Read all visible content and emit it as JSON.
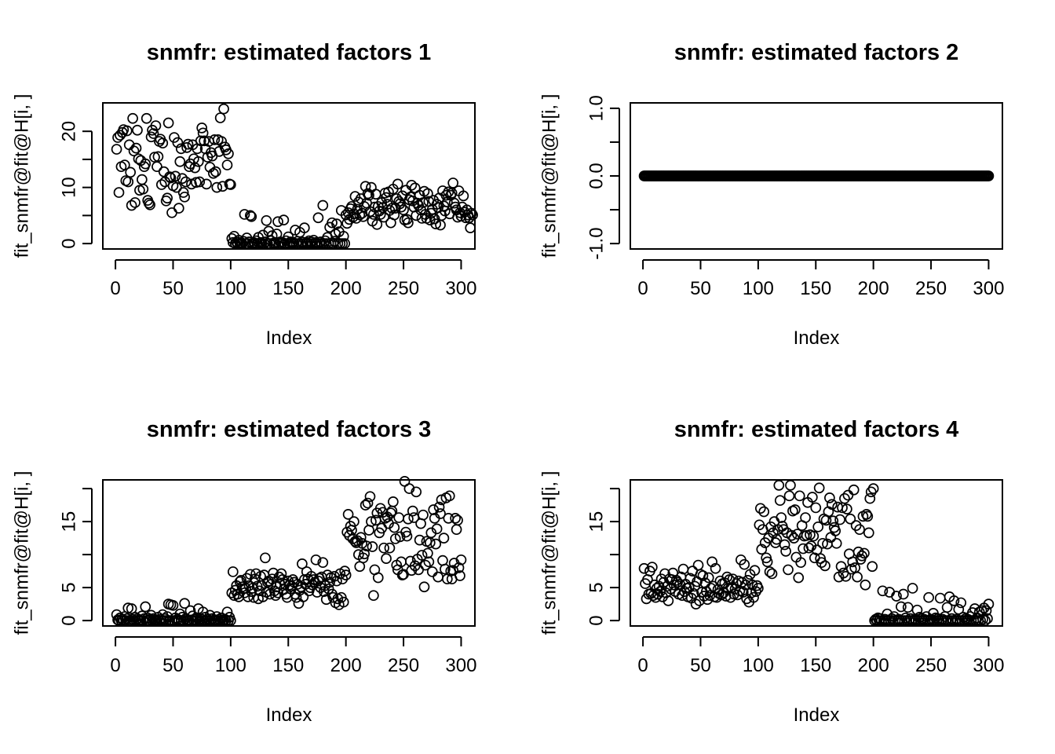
{
  "figure": {
    "panels": [
      {
        "title": "snmfr: estimated factors 1",
        "xlabel": "Index",
        "ylabel": "fit_snmfr@fit@H[i, ]",
        "xticks": [
          "0",
          "50",
          "100",
          "150",
          "200",
          "250",
          "300"
        ],
        "yticks": [
          "0",
          "10",
          "20"
        ]
      },
      {
        "title": "snmfr: estimated factors 2",
        "xlabel": "Index",
        "ylabel": "fit_snmfr@fit@H[i, ]",
        "xticks": [
          "0",
          "50",
          "100",
          "150",
          "200",
          "250",
          "300"
        ],
        "yticks": [
          "-1.0",
          "0.0",
          "1.0"
        ]
      },
      {
        "title": "snmfr: estimated factors 3",
        "xlabel": "Index",
        "ylabel": "fit_snmfr@fit@H[i, ]",
        "xticks": [
          "0",
          "50",
          "100",
          "150",
          "200",
          "250",
          "300"
        ],
        "yticks": [
          "0",
          "5",
          "15"
        ]
      },
      {
        "title": "snmfr: estimated factors 4",
        "xlabel": "Index",
        "ylabel": "fit_snmfr@fit@H[i, ]",
        "xticks": [
          "0",
          "50",
          "100",
          "150",
          "200",
          "250",
          "300"
        ],
        "yticks": [
          "0",
          "5",
          "15"
        ]
      }
    ]
  },
  "chart_data": [
    {
      "type": "scatter",
      "title": "snmfr: estimated factors 1",
      "xlabel": "Index",
      "ylabel": "fit_snmfr@fit@H[i, ]",
      "xlim": [
        1,
        300
      ],
      "ylim": [
        0,
        24.1
      ],
      "x_ticks": [
        0,
        50,
        100,
        150,
        200,
        250,
        300
      ],
      "y_ticks": [
        0,
        5,
        10,
        15,
        20
      ],
      "y_tick_labels": [
        "0",
        "",
        "10",
        "",
        "20"
      ],
      "grid": false,
      "marker": "open-circle",
      "y": [
        16.8,
        18.9,
        9.1,
        19.3,
        13.7,
        19.8,
        20.3,
        14.0,
        11.2,
        20.1,
        11.0,
        17.6,
        12.7,
        6.8,
        22.3,
        16.5,
        7.3,
        17.0,
        20.2,
        15.1,
        9.5,
        14.8,
        11.4,
        9.7,
        13.7,
        14.2,
        22.3,
        7.7,
        7.2,
        6.9,
        19.0,
        20.2,
        19.6,
        15.4,
        21.0,
        13.7,
        15.5,
        18.2,
        18.6,
        10.5,
        17.9,
        12.8,
        11.0,
        7.6,
        8.1,
        21.5,
        11.9,
        11.7,
        5.5,
        10.3,
        18.9,
        12.0,
        10.0,
        18.0,
        6.3,
        14.6,
        16.9,
        11.6,
        9.1,
        8.3,
        11.0,
        17.1,
        17.7,
        13.7,
        14.2,
        10.6,
        17.6,
        15.1,
        13.5,
        10.9,
        16.9,
        14.6,
        11.0,
        18.3,
        20.6,
        19.7,
        18.3,
        16.9,
        10.6,
        15.4,
        18.2,
        13.6,
        16.2,
        15.6,
        12.5,
        18.5,
        12.8,
        10.0,
        18.5,
        16.4,
        22.4,
        18.2,
        10.2,
        24.0,
        17.2,
        16.7,
        14.0,
        16.0,
        10.6,
        10.5,
        0.9,
        0.2,
        1.3,
        0.0,
        0.3,
        0.0,
        0.6,
        0.0,
        0.2,
        0.0,
        0.4,
        5.2,
        0.0,
        1.0,
        0.0,
        0.3,
        5.0,
        4.8,
        0.0,
        0.2,
        0.0,
        0.5,
        0.0,
        1.1,
        0.0,
        0.2,
        0.0,
        1.5,
        0.0,
        0.3,
        4.1,
        0.0,
        2.2,
        0.0,
        0.5,
        1.4,
        0.0,
        0.2,
        0.0,
        1.7,
        3.9,
        0.0,
        0.3,
        0.0,
        0.2,
        4.2,
        0.0,
        0.5,
        0.0,
        1.2,
        0.0,
        0.3,
        0.0,
        0.2,
        0.0,
        2.4,
        0.0,
        0.4,
        0.0,
        2.0,
        0.0,
        0.3,
        0.0,
        2.8,
        0.0,
        0.2,
        0.0,
        0.5,
        0.0,
        0.3,
        0.0,
        0.6,
        0.0,
        0.2,
        0.0,
        4.6,
        0.0,
        0.3,
        0.0,
        6.8,
        0.0,
        0.5,
        0.0,
        1.1,
        0.0,
        2.9,
        0.0,
        3.7,
        0.0,
        0.4,
        1.7,
        3.5,
        0.0,
        2.1,
        0.0,
        5.9,
        0.0,
        1.3,
        0.0,
        5.1,
        3.6,
        5.5,
        4.3,
        6.2,
        6.6,
        4.7,
        5.3,
        8.4,
        4.5,
        6.1,
        7.4,
        5.1,
        8.0,
        5.4,
        4.8,
        6.6,
        10.2,
        7.2,
        8.9,
        8.6,
        5.7,
        10.0,
        4.0,
        5.2,
        6.5,
        8.8,
        3.4,
        6.6,
        5.8,
        5.2,
        7.3,
        6.4,
        4.7,
        9.0,
        8.2,
        7.0,
        9.2,
        5.9,
        3.7,
        6.3,
        9.7,
        5.1,
        6.3,
        8.0,
        10.6,
        7.5,
        7.1,
        6.5,
        8.5,
        6.0,
        4.2,
        9.5,
        4.3,
        3.7,
        7.8,
        8.3,
        10.4,
        7.6,
        6.5,
        9.9,
        5.0,
        7.2,
        6.8,
        8.6,
        6.0,
        4.5,
        7.3,
        9.3,
        5.2,
        4.5,
        8.9,
        7.5,
        4.2,
        5.4,
        6.1,
        7.7,
        4.4,
        3.5,
        7.0,
        6.4,
        8.1,
        3.3,
        5.0,
        9.4,
        6.7,
        5.8,
        8.6,
        7.4,
        9.2,
        5.3,
        8.6,
        9.0,
        10.8,
        7.2,
        6.5,
        6.0,
        4.7,
        9.4,
        5.5,
        4.9,
        6.5,
        8.5,
        5.6,
        4.6,
        6.0,
        5.1,
        4.6,
        2.8,
        5.4,
        5.1
      ]
    },
    {
      "type": "scatter",
      "title": "snmfr: estimated factors 2",
      "xlabel": "Index",
      "ylabel": "fit_snmfr@fit@H[i, ]",
      "xlim": [
        1,
        300
      ],
      "ylim": [
        -1.0,
        1.0
      ],
      "x_ticks": [
        0,
        50,
        100,
        150,
        200,
        250,
        300
      ],
      "y_ticks": [
        -1.0,
        -0.5,
        0.0,
        0.5,
        1.0
      ],
      "y_tick_labels": [
        "-1.0",
        "",
        "0.0",
        "",
        "1.0"
      ],
      "grid": false,
      "marker": "open-circle",
      "constant_value": 0,
      "n_points": 300
    },
    {
      "type": "scatter",
      "title": "snmfr: estimated factors 3",
      "xlabel": "Index",
      "ylabel": "fit_snmfr@fit@H[i, ]",
      "xlim": [
        1,
        300
      ],
      "ylim": [
        0,
        20.5
      ],
      "x_ticks": [
        0,
        50,
        100,
        150,
        200,
        250,
        300
      ],
      "y_ticks": [
        0,
        5,
        10,
        15,
        20
      ],
      "y_tick_labels": [
        "0",
        "5",
        "",
        "15",
        ""
      ],
      "grid": false,
      "marker": "open-circle",
      "y": [
        0.9,
        0.1,
        0.0,
        0.4,
        0.0,
        0.2,
        0.0,
        0.6,
        0.0,
        0.3,
        1.9,
        0.0,
        0.0,
        1.8,
        0.2,
        0.0,
        0.5,
        0.0,
        0.3,
        0.0,
        0.1,
        0.0,
        0.7,
        0.0,
        0.3,
        2.1,
        0.0,
        0.4,
        0.0,
        0.2,
        0.8,
        0.0,
        0.3,
        0.0,
        0.1,
        0.0,
        0.5,
        0.0,
        0.2,
        0.0,
        0.9,
        0.0,
        0.3,
        0.0,
        0.6,
        2.5,
        0.0,
        2.4,
        0.0,
        2.3,
        0.0,
        0.4,
        0.0,
        0.2,
        0.0,
        1.0,
        0.0,
        0.5,
        0.0,
        2.6,
        0.3,
        0.0,
        0.1,
        0.0,
        1.5,
        0.0,
        0.7,
        0.0,
        0.2,
        0.0,
        0.4,
        1.8,
        0.0,
        0.3,
        0.0,
        1.3,
        0.0,
        0.5,
        0.0,
        0.2,
        0.0,
        0.8,
        0.0,
        0.3,
        0.0,
        0.1,
        0.0,
        0.6,
        0.0,
        0.2,
        0.0,
        0.4,
        0.0,
        0.0,
        0.2,
        0.0,
        1.3,
        0.0,
        0.5,
        0.0,
        4.2,
        7.4,
        3.8,
        4.6,
        5.3,
        4.0,
        3.6,
        5.9,
        6.1,
        5.1,
        4.8,
        4.2,
        4.9,
        6.4,
        3.6,
        5.3,
        7.0,
        4.4,
        4.9,
        3.5,
        6.3,
        7.1,
        5.2,
        3.3,
        4.5,
        6.7,
        5.3,
        3.6,
        6.9,
        9.5,
        4.3,
        5.8,
        6.0,
        4.0,
        5.5,
        6.3,
        7.2,
        4.5,
        3.8,
        5.1,
        4.2,
        6.6,
        5.5,
        7.1,
        6.2,
        4.7,
        5.5,
        4.0,
        3.5,
        6.0,
        5.4,
        4.8,
        5.2,
        6.2,
        5.8,
        4.0,
        3.5,
        5.5,
        2.6,
        4.6,
        5.1,
        8.6,
        3.6,
        6.2,
        5.5,
        7.4,
        6.3,
        4.5,
        5.0,
        6.7,
        5.4,
        6.2,
        5.8,
        9.2,
        4.3,
        6.0,
        6.4,
        5.0,
        6.6,
        8.8,
        4.4,
        5.3,
        3.2,
        6.9,
        4.8,
        5.8,
        6.5,
        4.0,
        3.5,
        6.7,
        2.7,
        6.0,
        3.3,
        2.4,
        7.1,
        3.5,
        6.3,
        2.8,
        7.5,
        6.9,
        13.4,
        16.1,
        12.9,
        14.3,
        13.7,
        12.4,
        15.0,
        12.0,
        11.8,
        12.1,
        10.0,
        8.2,
        12.6,
        11.7,
        9.5,
        10.1,
        17.5,
        11.3,
        17.8,
        13.7,
        18.8,
        15.0,
        11.2,
        3.8,
        7.7,
        15.2,
        16.3,
        6.5,
        13.3,
        17.0,
        14.0,
        16.4,
        11.0,
        15.5,
        9.4,
        15.7,
        14.7,
        11.0,
        16.3,
        16.6,
        18.0,
        14.1,
        12.4,
        8.4,
        7.7,
        15.6,
        12.7,
        8.9,
        6.9,
        7.0,
        21.1,
        13.4,
        12.8,
        15.4,
        20.0,
        9.0,
        7.6,
        16.6,
        15.6,
        8.3,
        19.5,
        9.3,
        7.7,
        12.2,
        14.7,
        9.9,
        16.0,
        5.1,
        8.4,
        12.0,
        10.2,
        8.9,
        11.8,
        13.3,
        7.4,
        16.8,
        15.5,
        11.6,
        13.9,
        6.6,
        17.2,
        16.2,
        18.3,
        9.1,
        12.5,
        7.8,
        18.6,
        6.3,
        15.5,
        18.9,
        7.5,
        6.3,
        7.6,
        8.7,
        15.5,
        13.8,
        15.2,
        8.0,
        6.8,
        9.2
      ]
    },
    {
      "type": "scatter",
      "title": "snmfr: estimated factors 4",
      "xlabel": "Index",
      "ylabel": "fit_snmfr@fit@H[i, ]",
      "xlim": [
        1,
        300
      ],
      "ylim": [
        0,
        20.5
      ],
      "x_ticks": [
        0,
        50,
        100,
        150,
        200,
        250,
        300
      ],
      "y_ticks": [
        0,
        5,
        10,
        15,
        20
      ],
      "y_tick_labels": [
        "0",
        "5",
        "",
        "15",
        ""
      ],
      "grid": false,
      "marker": "open-circle",
      "y": [
        7.9,
        5.6,
        3.3,
        6.2,
        4.0,
        7.5,
        4.1,
        8.1,
        3.8,
        5.4,
        3.5,
        4.9,
        4.0,
        5.2,
        4.4,
        6.3,
        3.6,
        5.8,
        7.1,
        4.2,
        5.2,
        3.0,
        6.3,
        4.8,
        6.2,
        7.2,
        5.4,
        4.4,
        6.1,
        5.8,
        4.0,
        5.5,
        6.6,
        3.8,
        7.8,
        4.4,
        5.5,
        4.9,
        3.6,
        5.0,
        6.4,
        3.4,
        7.5,
        4.1,
        5.2,
        2.5,
        5.9,
        8.4,
        3.0,
        7.0,
        4.3,
        6.8,
        3.7,
        5.7,
        4.4,
        3.2,
        6.5,
        3.8,
        4.9,
        8.9,
        5.2,
        3.6,
        7.9,
        3.5,
        4.7,
        4.1,
        6.0,
        3.9,
        5.6,
        4.2,
        5.7,
        3.7,
        6.6,
        4.9,
        6.2,
        3.5,
        5.0,
        6.3,
        4.0,
        4.8,
        5.6,
        3.9,
        6.0,
        4.5,
        9.2,
        5.8,
        4.3,
        8.5,
        5.4,
        3.3,
        6.1,
        2.8,
        7.0,
        4.2,
        5.4,
        3.5,
        7.6,
        4.4,
        5.3,
        4.9,
        14.5,
        17.0,
        10.8,
        13.8,
        16.5,
        11.8,
        9.5,
        8.9,
        12.5,
        7.4,
        14.2,
        7.1,
        13.3,
        15.0,
        11.8,
        12.3,
        13.8,
        20.5,
        18.2,
        15.6,
        14.3,
        13.8,
        11.5,
        10.5,
        13.3,
        7.7,
        18.9,
        20.5,
        12.9,
        16.6,
        12.5,
        16.8,
        9.6,
        13.1,
        6.5,
        18.9,
        8.8,
        14.4,
        10.9,
        12.8,
        15.6,
        12.9,
        17.9,
        11.0,
        13.0,
        11.3,
        18.7,
        12.8,
        9.5,
        17.1,
        10.7,
        14.2,
        20.1,
        9.4,
        8.8,
        11.7,
        15.4,
        8.3,
        15.2,
        11.6,
        16.5,
        18.6,
        12.6,
        17.6,
        15.1,
        14.1,
        13.6,
        11.7,
        17.2,
        6.6,
        15.3,
        8.2,
        17.1,
        7.2,
        18.5,
        6.7,
        16.9,
        19.0,
        10.1,
        15.4,
        7.8,
        8.9,
        19.8,
        8.0,
        14.4,
        6.6,
        10.4,
        13.8,
        9.3,
        9.8,
        15.8,
        10.2,
        5.4,
        16.1,
        15.8,
        13.3,
        18.5,
        19.5,
        8.2,
        20.0,
        0.0,
        0.2,
        0.0,
        0.4,
        0.0,
        0.3,
        0.0,
        4.5,
        0.0,
        0.2,
        0.0,
        1.0,
        0.0,
        4.3,
        0.0,
        0.3,
        0.0,
        0.6,
        0.0,
        3.7,
        0.0,
        0.2,
        0.0,
        2.1,
        0.0,
        4.0,
        0.0,
        0.4,
        0.0,
        2.0,
        0.0,
        0.3,
        0.0,
        4.9,
        0.0,
        0.2,
        0.0,
        1.6,
        0.0,
        0.5,
        0.0,
        0.3,
        0.0,
        0.2,
        0.0,
        0.6,
        0.0,
        3.5,
        0.0,
        0.2,
        0.0,
        1.1,
        0.0,
        0.4,
        0.0,
        0.3,
        0.0,
        3.4,
        0.0,
        0.2,
        0.0,
        0.6,
        0.0,
        2.0,
        0.0,
        3.6,
        0.0,
        0.3,
        0.0,
        3.0,
        0.0,
        0.2,
        0.0,
        1.7,
        0.0,
        2.7,
        0.0,
        0.5,
        0.0,
        0.3,
        0.0,
        0.2,
        0.0,
        0.6,
        0.0,
        1.2,
        0.0,
        1.8,
        0.0,
        0.4,
        0.0,
        1.3,
        0.0,
        1.5,
        0.2,
        1.9,
        0.0,
        1.5,
        0.3,
        2.5
      ]
    }
  ]
}
